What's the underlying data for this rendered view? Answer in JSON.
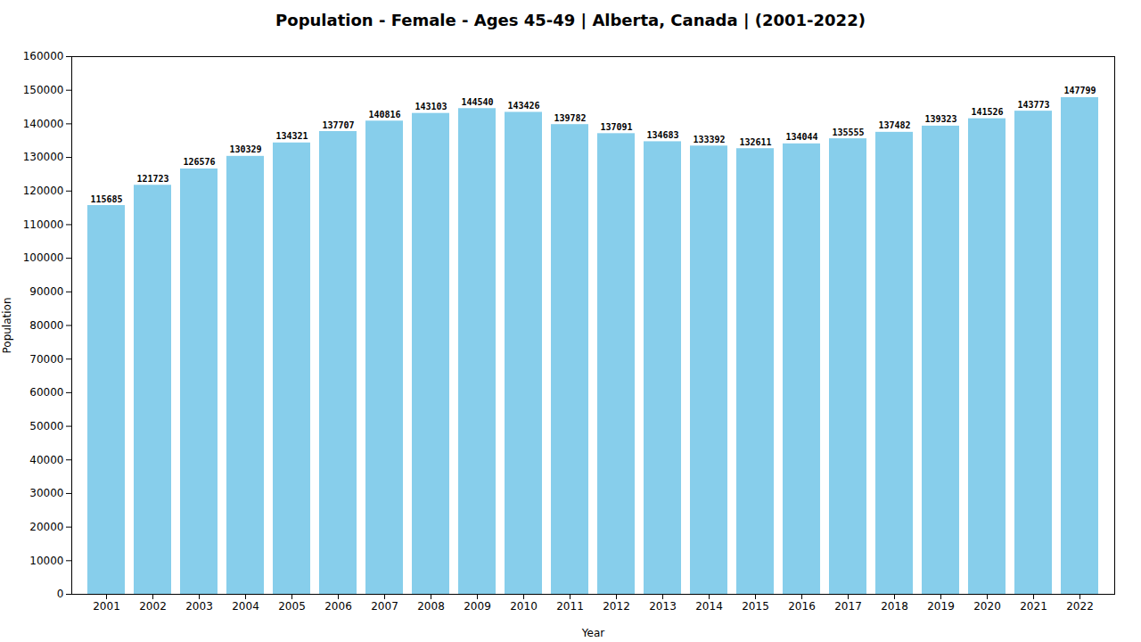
{
  "chart_data": {
    "type": "bar",
    "title": "Population - Female - Ages 45-49 | Alberta, Canada |  (2001-2022)",
    "xlabel": "Year",
    "ylabel": "Population",
    "categories": [
      "2001",
      "2002",
      "2003",
      "2004",
      "2005",
      "2006",
      "2007",
      "2008",
      "2009",
      "2010",
      "2011",
      "2012",
      "2013",
      "2014",
      "2015",
      "2016",
      "2017",
      "2018",
      "2019",
      "2020",
      "2021",
      "2022"
    ],
    "values": [
      115685,
      121723,
      126576,
      130329,
      134321,
      137707,
      140816,
      143103,
      144540,
      143426,
      139782,
      137091,
      134683,
      133392,
      132611,
      134044,
      135555,
      137482,
      139323,
      141526,
      143773,
      147799
    ],
    "color": "#87CEEB",
    "ylim": [
      0,
      160000
    ],
    "yticks": [
      0,
      10000,
      20000,
      30000,
      40000,
      50000,
      60000,
      70000,
      80000,
      90000,
      100000,
      110000,
      120000,
      130000,
      140000,
      150000,
      160000
    ],
    "grid": false,
    "data_labels": true
  }
}
